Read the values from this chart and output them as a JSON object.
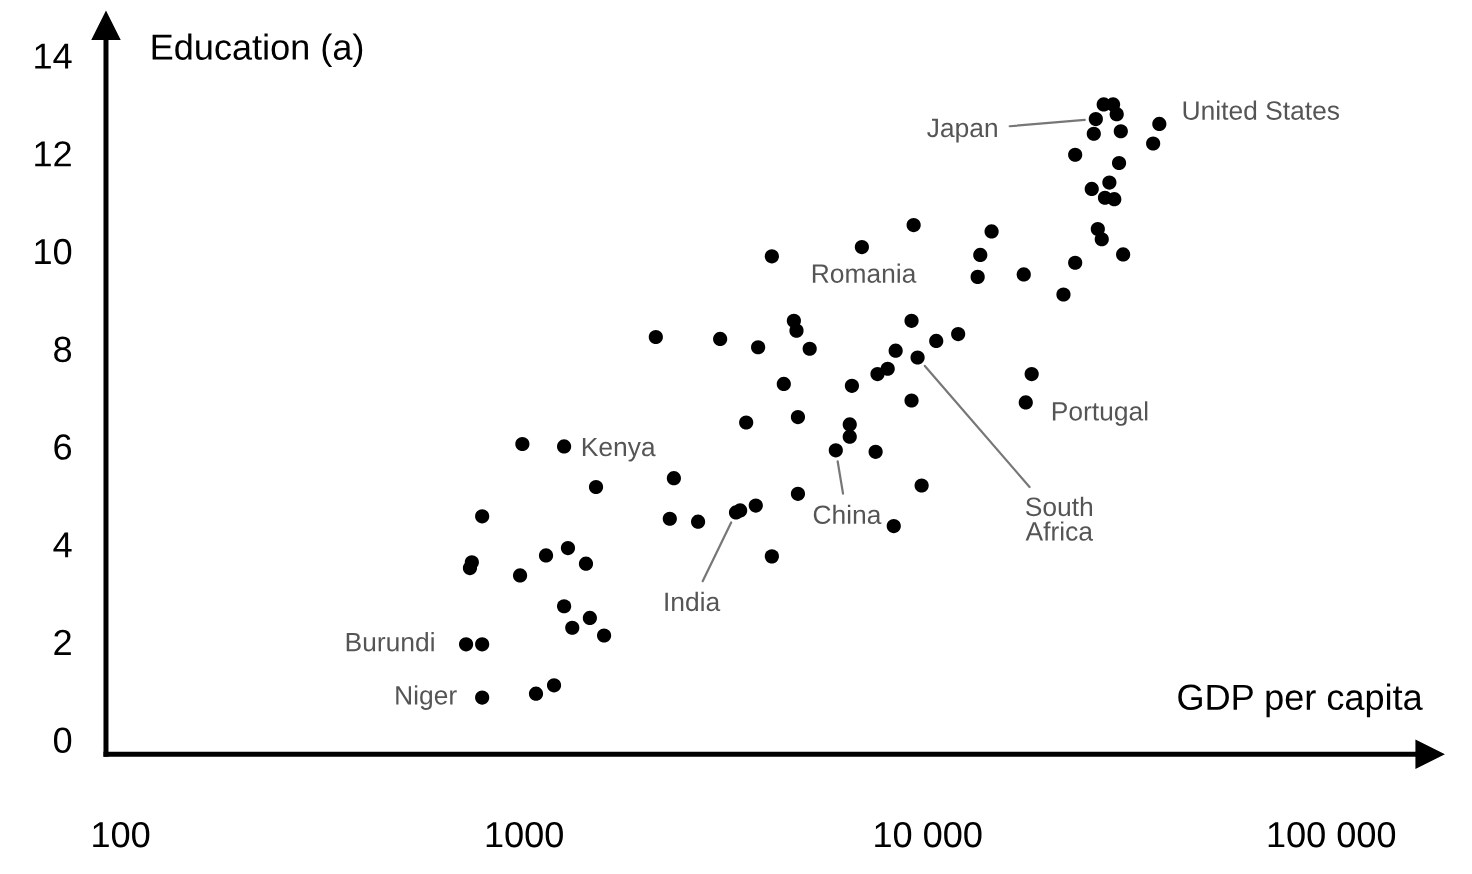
{
  "chart_data": {
    "type": "scatter",
    "log": "x",
    "xlabel": "GDP per capita",
    "ylabel": "Education (a)",
    "xlim": [
      92,
      175000
    ],
    "ylim": [
      -0.3,
      14.6
    ],
    "xticks": [
      100,
      1000,
      {
        "value": 10000,
        "label": "10 000"
      },
      {
        "value": 100000,
        "label": "100 000"
      }
    ],
    "yticks": [
      0,
      2,
      4,
      6,
      8,
      10,
      12,
      14
    ],
    "marker": "circle",
    "color": "#000000",
    "x": [
      990,
      1256,
      1507,
      2350,
      2296,
      2698,
      3350,
      787,
      742,
      734,
      977,
      1133,
      1284,
      1423,
      1256,
      1455,
      1316,
      1578,
      718,
      787,
      787,
      1070,
      1186,
      3550,
      4770,
      6410,
      6410,
      5920,
      7430,
      4770,
      3430,
      3750,
      4110,
      9660,
      8240,
      17500,
      27300,
      28800,
      26100,
      29400,
      25800,
      30100,
      37500,
      36200,
      23200,
      29800,
      25500,
      28200,
      27500,
      29000,
      26400,
      27000,
      30500,
      23200,
      21700,
      17300,
      14400,
      13500,
      13300,
      9230,
      6870,
      4110,
      2120,
      3060,
      3800,
      4660,
      4730,
      5100,
      4400,
      6490,
      9120,
      7510,
      7960,
      8330,
      9120,
      9440,
      10500,
      11900,
      18100
    ],
    "values": [
      6.05,
      6.0,
      5.17,
      5.35,
      4.52,
      4.46,
      4.65,
      4.57,
      3.63,
      3.51,
      3.36,
      3.77,
      3.92,
      3.6,
      2.73,
      2.49,
      2.29,
      2.13,
      1.95,
      1.95,
      0.86,
      0.94,
      1.11,
      6.49,
      6.6,
      6.45,
      6.2,
      5.92,
      5.89,
      5.03,
      4.69,
      4.79,
      3.75,
      5.2,
      4.37,
      6.9,
      13.0,
      13.0,
      12.7,
      12.8,
      12.4,
      12.45,
      12.6,
      12.2,
      11.97,
      11.8,
      11.27,
      11.4,
      11.09,
      11.06,
      10.45,
      10.24,
      9.93,
      9.76,
      9.11,
      9.52,
      10.4,
      9.92,
      9.47,
      10.53,
      10.08,
      9.89,
      8.24,
      8.2,
      8.03,
      8.57,
      8.37,
      8.0,
      7.28,
      7.24,
      6.94,
      7.48,
      7.59,
      7.96,
      8.57,
      7.82,
      8.16,
      8.3,
      7.48
    ],
    "annotations": [
      {
        "text": "Japan",
        "x": 26100,
        "y": 12.7
      },
      {
        "text": "United States",
        "x": 37500,
        "y": 12.6
      },
      {
        "text": "Romania",
        "x": 4110,
        "y": 9.89
      },
      {
        "text": "Kenya",
        "x": 1256,
        "y": 6.0
      },
      {
        "text": "India",
        "x": 3350,
        "y": 4.65
      },
      {
        "text": "China",
        "x": 5920,
        "y": 5.92
      },
      {
        "text": "South\nAfrica",
        "x": 9440,
        "y": 7.82
      },
      {
        "text": "Portugal",
        "x": 17500,
        "y": 6.9
      },
      {
        "text": "Burundi",
        "x": 718,
        "y": 1.95
      },
      {
        "text": "Niger",
        "x": 787,
        "y": 0.86
      }
    ]
  }
}
